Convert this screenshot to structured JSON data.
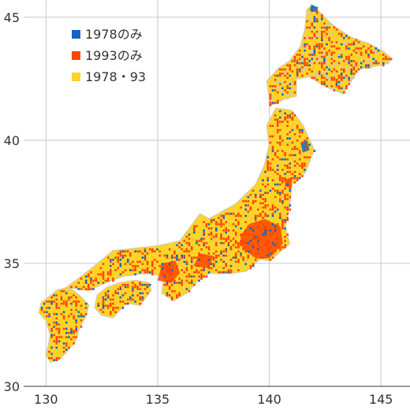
{
  "chart_data": {
    "type": "scatter",
    "title": "",
    "xlabel": "",
    "ylabel": "",
    "xlim": [
      129,
      146.3
    ],
    "ylim": [
      30,
      45.7
    ],
    "x_ticks": [
      130,
      135,
      140,
      145
    ],
    "y_ticks": [
      30,
      35,
      40,
      45
    ],
    "grid": true,
    "legend_position": "top-left",
    "legend": [
      {
        "key": "only1978",
        "label": "1978のみ",
        "color": "#1565c0"
      },
      {
        "key": "only1993",
        "label": "1993のみ",
        "color": "#ff4500"
      },
      {
        "key": "both",
        "label": "1978・93",
        "color": "#ffd42a"
      }
    ],
    "background_color": "#c8c8c8",
    "series": [
      {
        "key": "both",
        "color": "#ffd42a",
        "regions": [
          {
            "region": "Kyushu",
            "polygon": [
              [
                130.0,
                31.3
              ],
              [
                130.2,
                31.0
              ],
              [
                130.6,
                31.1
              ],
              [
                130.9,
                31.4
              ],
              [
                131.3,
                31.8
              ],
              [
                131.5,
                32.4
              ],
              [
                131.8,
                32.9
              ],
              [
                131.9,
                33.3
              ],
              [
                131.6,
                33.6
              ],
              [
                131.2,
                33.9
              ],
              [
                130.9,
                34.0
              ],
              [
                130.5,
                33.9
              ],
              [
                130.1,
                33.6
              ],
              [
                129.8,
                33.4
              ],
              [
                129.7,
                33.0
              ],
              [
                130.0,
                32.7
              ],
              [
                130.2,
                32.1
              ],
              [
                130.1,
                31.6
              ]
            ]
          },
          {
            "region": "Shikoku",
            "polygon": [
              [
                132.2,
                33.2
              ],
              [
                132.5,
                32.9
              ],
              [
                133.0,
                32.8
              ],
              [
                133.6,
                33.4
              ],
              [
                134.2,
                33.3
              ],
              [
                134.7,
                33.9
              ],
              [
                134.6,
                34.2
              ],
              [
                134.0,
                34.3
              ],
              [
                133.3,
                34.2
              ],
              [
                132.7,
                34.0
              ],
              [
                132.3,
                33.7
              ]
            ]
          },
          {
            "region": "Honshu",
            "polygon": [
              [
                130.9,
                34.0
              ],
              [
                131.5,
                34.4
              ],
              [
                132.2,
                34.9
              ],
              [
                133.0,
                35.5
              ],
              [
                134.0,
                35.6
              ],
              [
                135.0,
                35.7
              ],
              [
                136.0,
                35.9
              ],
              [
                136.9,
                37.0
              ],
              [
                137.3,
                36.8
              ],
              [
                138.5,
                37.4
              ],
              [
                139.4,
                38.2
              ],
              [
                139.8,
                39.0
              ],
              [
                140.0,
                39.8
              ],
              [
                139.9,
                40.6
              ],
              [
                140.3,
                41.3
              ],
              [
                141.0,
                41.2
              ],
              [
                141.5,
                40.6
              ],
              [
                142.0,
                39.6
              ],
              [
                141.6,
                38.7
              ],
              [
                141.0,
                38.2
              ],
              [
                140.9,
                37.3
              ],
              [
                140.7,
                36.5
              ],
              [
                140.9,
                35.8
              ],
              [
                140.0,
                35.1
              ],
              [
                139.6,
                35.2
              ],
              [
                139.0,
                34.7
              ],
              [
                138.3,
                34.6
              ],
              [
                137.3,
                34.6
              ],
              [
                136.8,
                34.3
              ],
              [
                136.3,
                33.8
              ],
              [
                135.7,
                33.5
              ],
              [
                135.2,
                33.8
              ],
              [
                135.3,
                34.5
              ],
              [
                134.5,
                34.6
              ],
              [
                133.5,
                34.5
              ],
              [
                132.6,
                34.2
              ],
              [
                131.9,
                33.9
              ],
              [
                131.3,
                34.0
              ]
            ]
          },
          {
            "region": "Hokkaido",
            "polygon": [
              [
                140.0,
                41.4
              ],
              [
                140.7,
                41.7
              ],
              [
                141.2,
                41.8
              ],
              [
                141.2,
                42.5
              ],
              [
                141.8,
                42.6
              ],
              [
                142.5,
                42.2
              ],
              [
                143.3,
                41.9
              ],
              [
                144.0,
                42.9
              ],
              [
                145.2,
                43.1
              ],
              [
                145.5,
                43.3
              ],
              [
                145.1,
                43.6
              ],
              [
                144.5,
                43.9
              ],
              [
                143.6,
                44.2
              ],
              [
                142.8,
                44.7
              ],
              [
                141.9,
                45.5
              ],
              [
                141.7,
                45.3
              ],
              [
                141.6,
                44.5
              ],
              [
                141.4,
                43.8
              ],
              [
                140.9,
                43.2
              ],
              [
                140.4,
                42.9
              ],
              [
                139.9,
                42.4
              ],
              [
                140.0,
                41.8
              ]
            ]
          }
        ]
      },
      {
        "key": "only1993",
        "color": "#ff4500",
        "regions": [
          {
            "region": "Kanto",
            "polygon": [
              [
                138.8,
                35.6
              ],
              [
                139.4,
                35.2
              ],
              [
                140.0,
                35.2
              ],
              [
                140.6,
                35.8
              ],
              [
                140.5,
                36.5
              ],
              [
                139.8,
                36.8
              ],
              [
                139.1,
                36.6
              ],
              [
                138.7,
                36.1
              ]
            ]
          },
          {
            "region": "Kinki",
            "polygon": [
              [
                135.0,
                34.3
              ],
              [
                135.6,
                34.2
              ],
              [
                136.0,
                34.6
              ],
              [
                135.8,
                35.1
              ],
              [
                135.2,
                35.0
              ]
            ]
          },
          {
            "region": "Sendai",
            "polygon": [
              [
                140.7,
                38.1
              ],
              [
                141.0,
                38.1
              ],
              [
                141.0,
                38.5
              ],
              [
                140.7,
                38.4
              ]
            ]
          },
          {
            "region": "Chubu",
            "polygon": [
              [
                136.6,
                34.9
              ],
              [
                137.3,
                34.8
              ],
              [
                137.5,
                35.3
              ],
              [
                136.9,
                35.4
              ]
            ]
          }
        ]
      },
      {
        "key": "only1978",
        "color": "#1565c0",
        "regions": [
          {
            "region": "Hokkaido-north",
            "polygon": [
              [
                141.8,
                45.3
              ],
              [
                142.1,
                45.2
              ],
              [
                142.2,
                45.4
              ],
              [
                141.9,
                45.5
              ]
            ]
          },
          {
            "region": "Tohoku-east",
            "polygon": [
              [
                141.5,
                39.5
              ],
              [
                141.8,
                39.6
              ],
              [
                141.7,
                40.0
              ],
              [
                141.4,
                39.9
              ]
            ]
          }
        ]
      }
    ]
  }
}
